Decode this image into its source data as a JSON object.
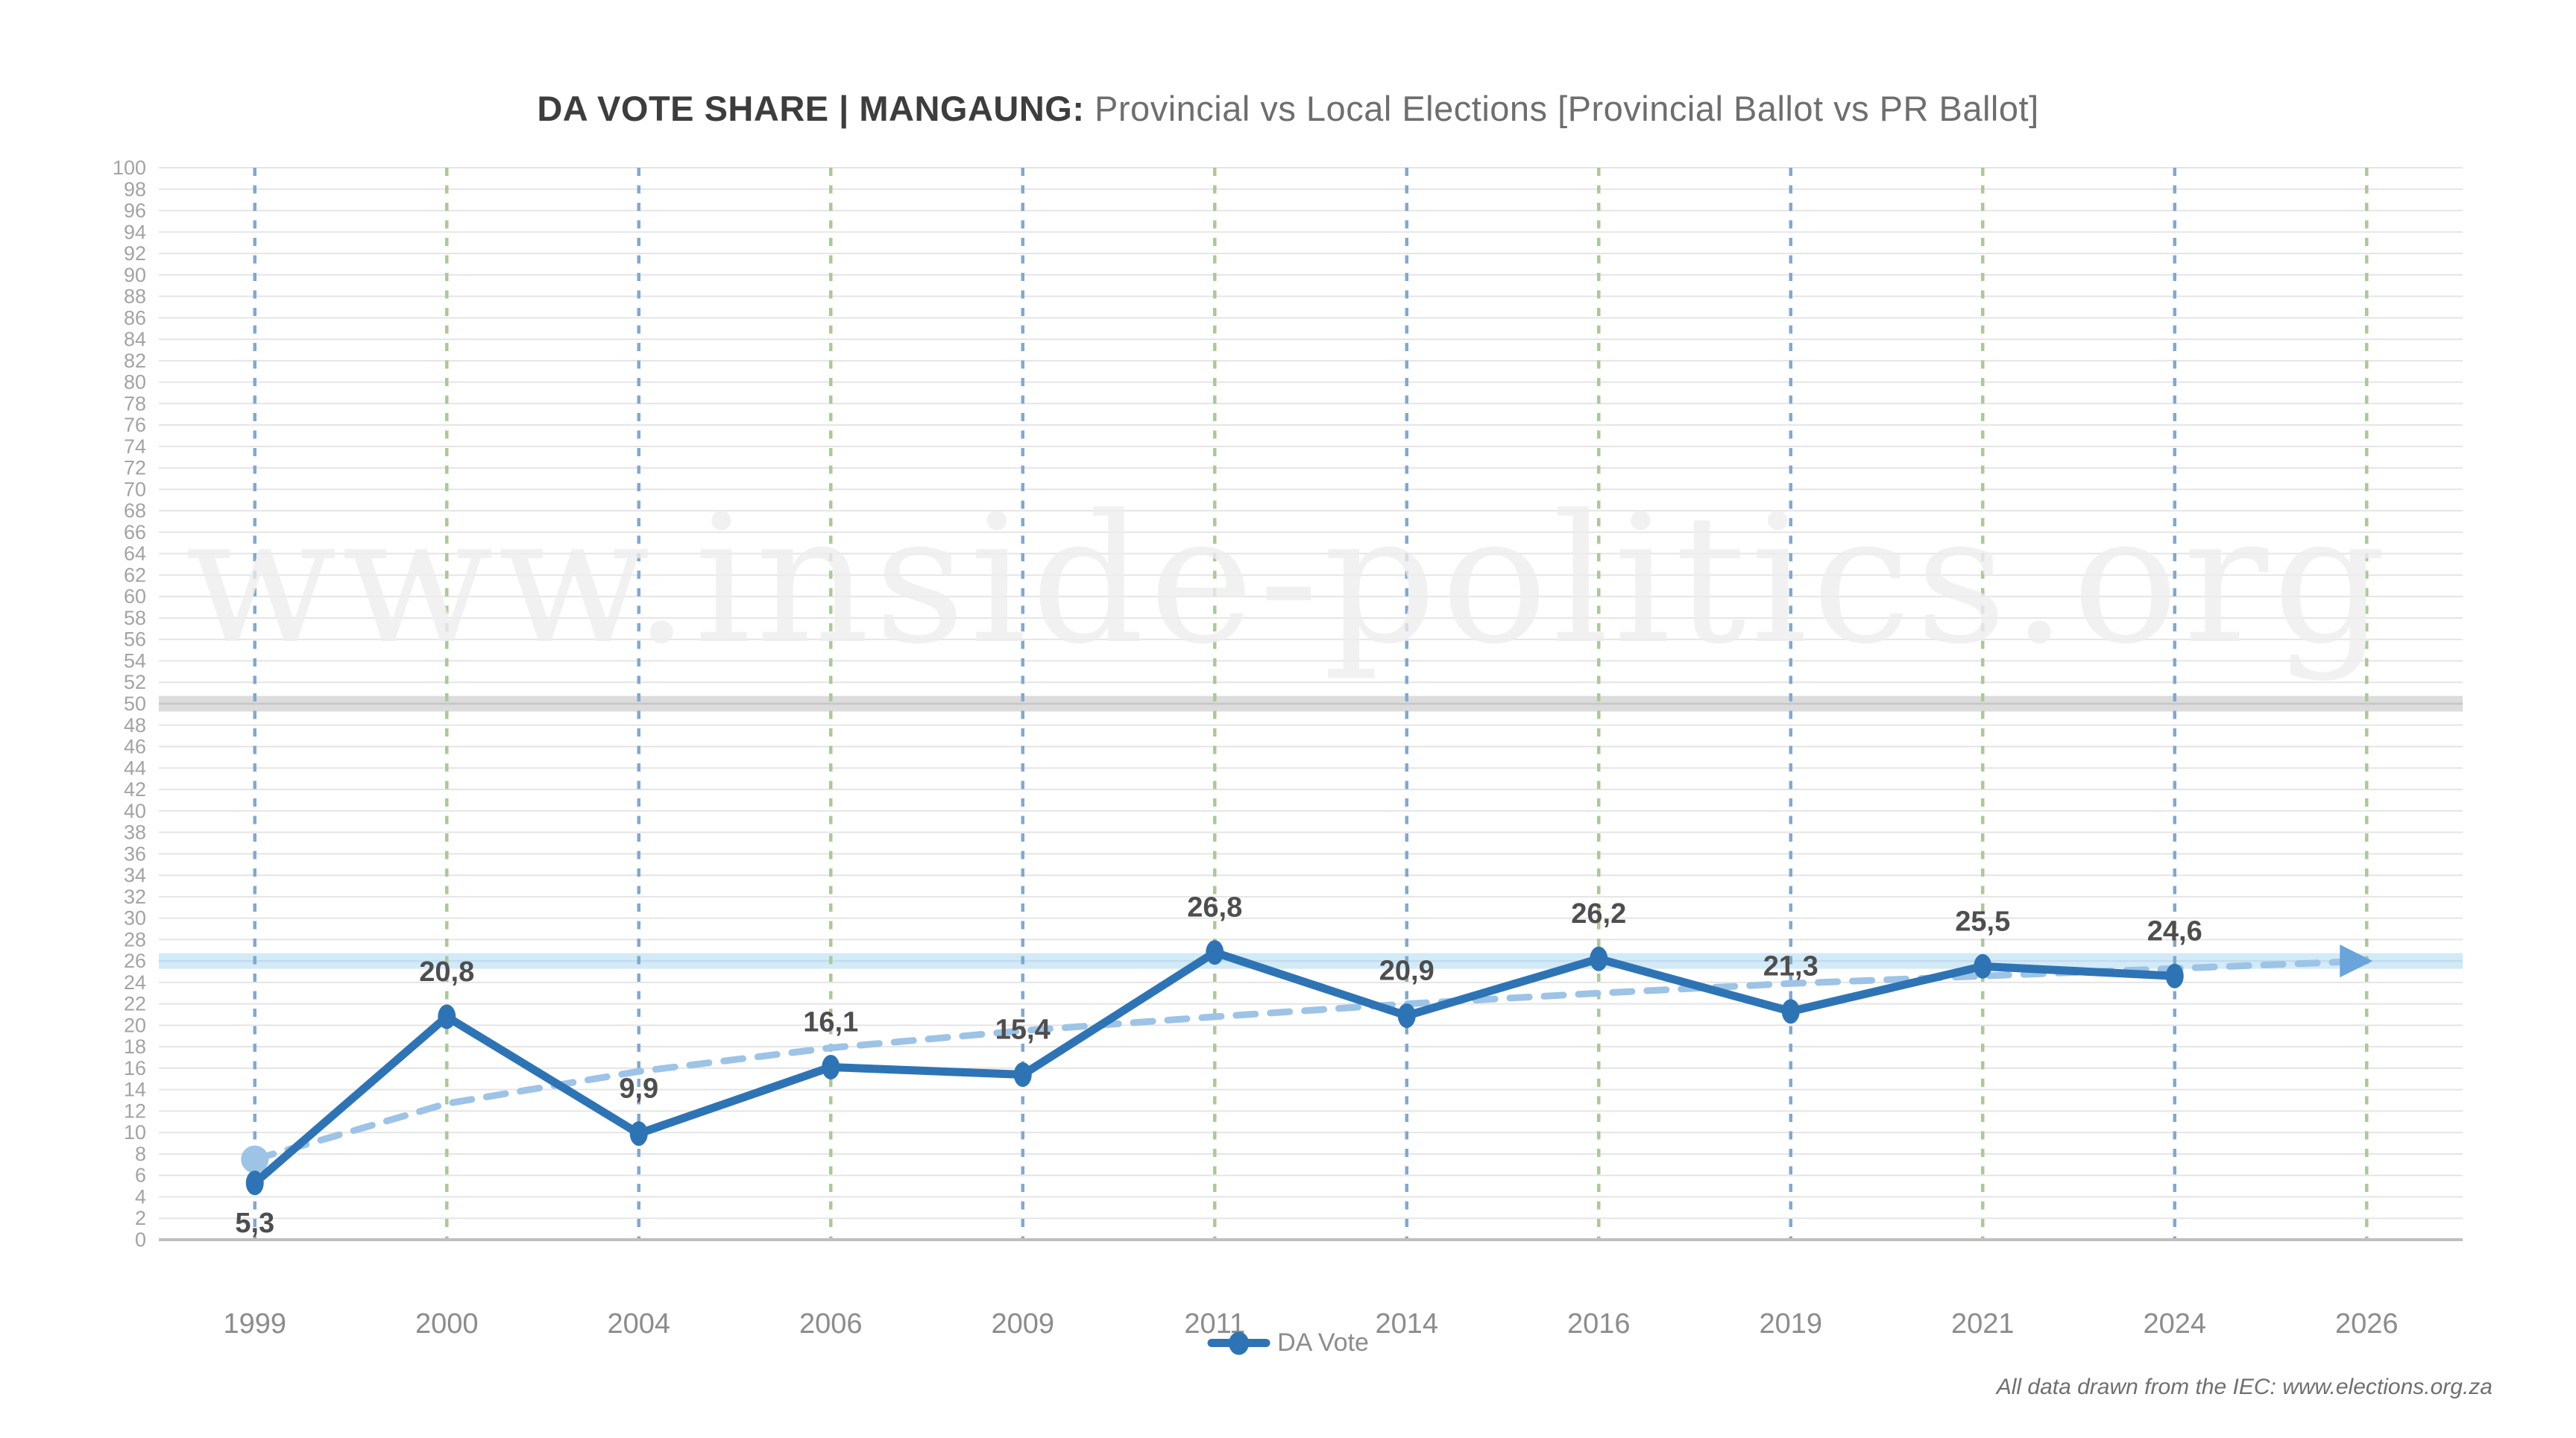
{
  "title": {
    "bold": "DA VOTE SHARE | MANGAUNG:",
    "light": " Provincial vs Local Elections [Provincial Ballot vs PR Ballot]"
  },
  "watermark": {
    "text": "www.inside-politics.org"
  },
  "legend": {
    "label": "DA Vote"
  },
  "footer": {
    "note": "All data drawn from the IEC: www.elections.org.za"
  },
  "chart_data": {
    "type": "line",
    "title": "DA VOTE SHARE | MANGAUNG: Provincial vs Local Elections [Provincial Ballot vs PR Ballot]",
    "categories": [
      "1999",
      "2000",
      "2004",
      "2006",
      "2009",
      "2011",
      "2014",
      "2016",
      "2019",
      "2021",
      "2024",
      "2026"
    ],
    "series": [
      {
        "name": "DA Vote",
        "values": [
          5.3,
          20.8,
          9.9,
          16.1,
          15.4,
          26.8,
          20.9,
          26.2,
          21.3,
          25.5,
          24.6,
          null
        ],
        "point_labels": [
          "5,3",
          "20,8",
          "9,9",
          "16,1",
          "15,4",
          "26,8",
          "20,9",
          "26,2",
          "21,3",
          "25,5",
          "24,6",
          ""
        ]
      }
    ],
    "trendline": {
      "style": "dashed",
      "arrow_end": true,
      "values": [
        7.5,
        12.7,
        15.7,
        17.9,
        19.5,
        20.8,
        22.0,
        23.0,
        23.9,
        24.6,
        25.3,
        26.0
      ]
    },
    "provincial_election_years": [
      "1999",
      "2004",
      "2009",
      "2014",
      "2019",
      "2024"
    ],
    "local_election_years": [
      "2000",
      "2006",
      "2011",
      "2016",
      "2021",
      "2026"
    ],
    "ylim": [
      0,
      100
    ],
    "ytick_step": 2,
    "grid": true,
    "legend_position": "bottom",
    "reference_bands": [
      {
        "value": 50,
        "color": "#DCDCDC",
        "line_color": "#C6C6C6"
      },
      {
        "value": 26,
        "color": "#D3EAF7",
        "line_color": "#BFDCEE"
      }
    ]
  },
  "colors": {
    "series_line": "#2E74B5",
    "trend": "#9DC3E6",
    "trend_start_dot": "#9DC3E6",
    "arrow": "#69A5DA",
    "provincial_gridline": "#7FA9D2",
    "local_gridline": "#A7CC93",
    "hgridline": "#E5E5E5",
    "axis_line": "#BFBFBF",
    "ylabel": "#A3A3A3",
    "xlabel": "#8C8C8C",
    "datalabel": "#4E4E4E",
    "title_bold": "#3D3D3D",
    "title_light": "#6E6E6E",
    "legend_text": "#8C8C8C",
    "footer_text": "#6F6F6F",
    "watermark": "#EEEEEE"
  }
}
